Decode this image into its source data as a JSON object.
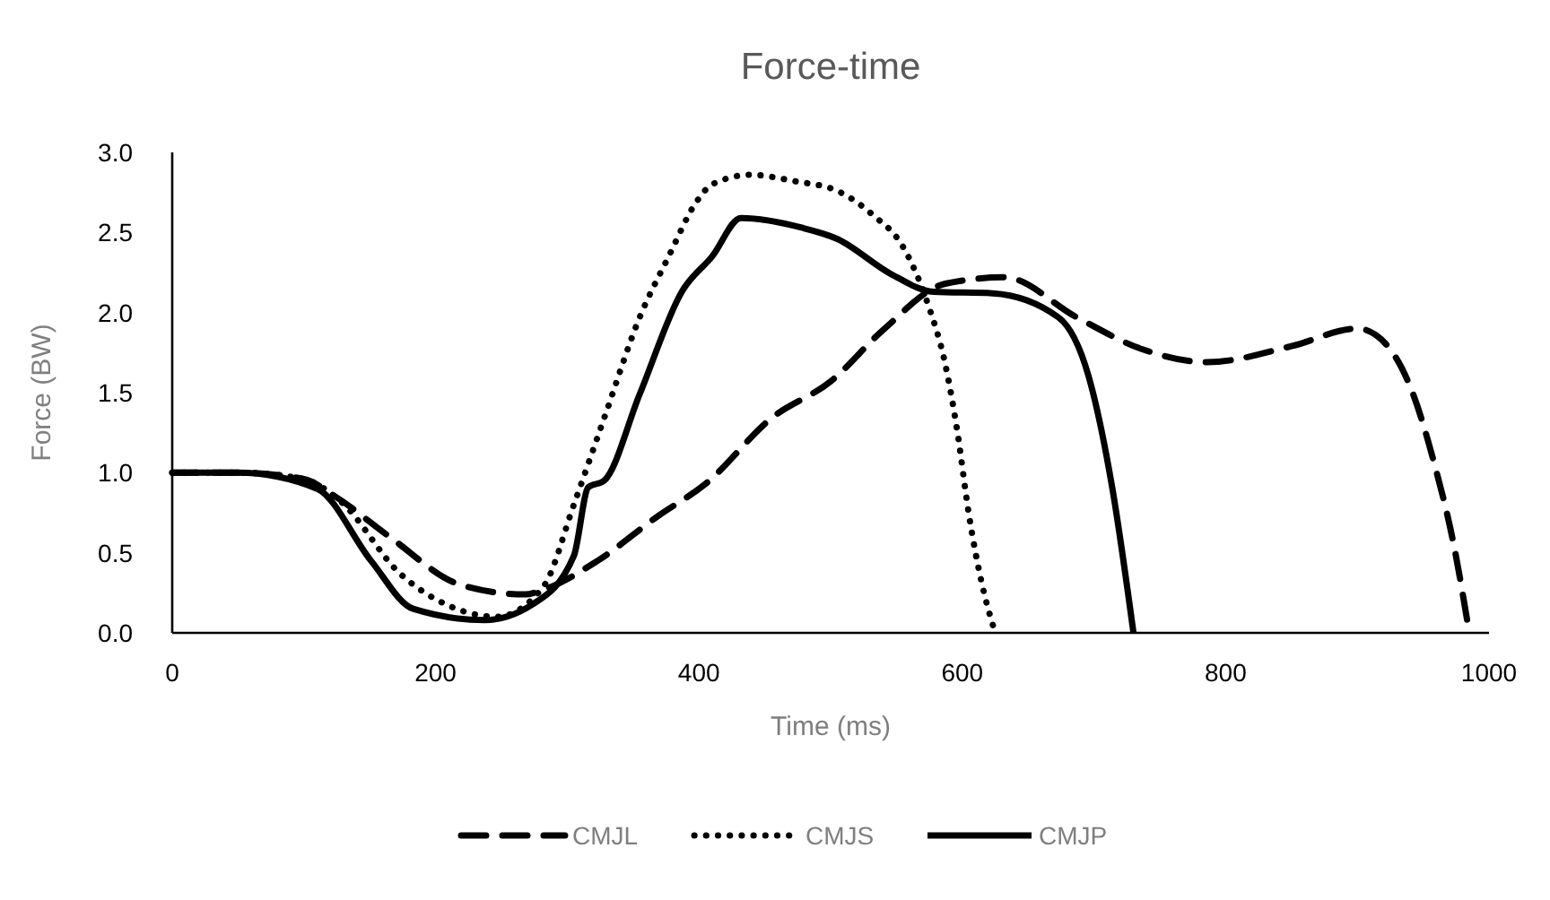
{
  "chart_data": {
    "type": "line",
    "title": "Force-time",
    "xlabel": "Time (ms)",
    "ylabel": "Force (BW)",
    "xlim": [
      0,
      1000
    ],
    "xticks": [
      0,
      200,
      400,
      600,
      800,
      1000
    ],
    "ylim": [
      0,
      3
    ],
    "yticks": [
      {
        "value": 0,
        "label": "0.0"
      },
      {
        "value": 0.5,
        "label": "0.5"
      },
      {
        "value": 1,
        "label": "1.0"
      },
      {
        "value": 1.5,
        "label": "1.5"
      },
      {
        "value": 2,
        "label": "2.0"
      },
      {
        "value": 2.5,
        "label": "2.5"
      },
      {
        "value": 3,
        "label": "3.0"
      }
    ],
    "grid": false,
    "legend": "bottom",
    "series": [
      {
        "name": "CMJL",
        "color": "#000000",
        "line_style": "dashed",
        "x": [
          0,
          50,
          100,
          124,
          165,
          219,
          268,
          282,
          323,
          369,
          405,
          455,
          500,
          541,
          587,
          632,
          687,
          737,
          786,
          850,
          900,
          914,
          941,
          959,
          973,
          985
        ],
        "values": [
          1.0,
          1.0,
          0.96,
          0.85,
          0.6,
          0.3,
          0.24,
          0.27,
          0.45,
          0.73,
          0.93,
          1.34,
          1.57,
          1.9,
          2.18,
          2.22,
          1.97,
          1.77,
          1.69,
          1.79,
          1.9,
          1.86,
          1.52,
          1.04,
          0.56,
          0.0
        ]
      },
      {
        "name": "CMJS",
        "color": "#000000",
        "line_style": "dotted",
        "x": [
          0,
          50,
          100,
          128,
          173,
          210,
          246,
          282,
          305,
          328,
          355,
          377,
          398,
          410,
          439,
          473,
          505,
          532,
          555,
          574,
          587,
          596,
          605,
          614,
          625
        ],
        "values": [
          1.0,
          1.0,
          0.96,
          0.82,
          0.37,
          0.17,
          0.1,
          0.29,
          0.8,
          1.34,
          1.97,
          2.35,
          2.69,
          2.8,
          2.86,
          2.82,
          2.76,
          2.61,
          2.41,
          2.05,
          1.68,
          1.27,
          0.74,
          0.34,
          0.0
        ]
      },
      {
        "name": "CMJP",
        "color": "#000000",
        "line_style": "solid",
        "x": [
          0,
          50,
          110,
          151,
          183,
          237,
          274,
          305,
          316,
          328,
          355,
          387,
          410,
          432,
          478,
          505,
          546,
          578,
          623,
          673,
          696,
          714,
          730
        ],
        "values": [
          1.0,
          1.0,
          0.9,
          0.45,
          0.15,
          0.08,
          0.18,
          0.48,
          0.91,
          0.95,
          1.49,
          2.13,
          2.35,
          2.59,
          2.53,
          2.46,
          2.24,
          2.13,
          2.12,
          1.97,
          1.6,
          0.9,
          0.0
        ]
      }
    ]
  }
}
